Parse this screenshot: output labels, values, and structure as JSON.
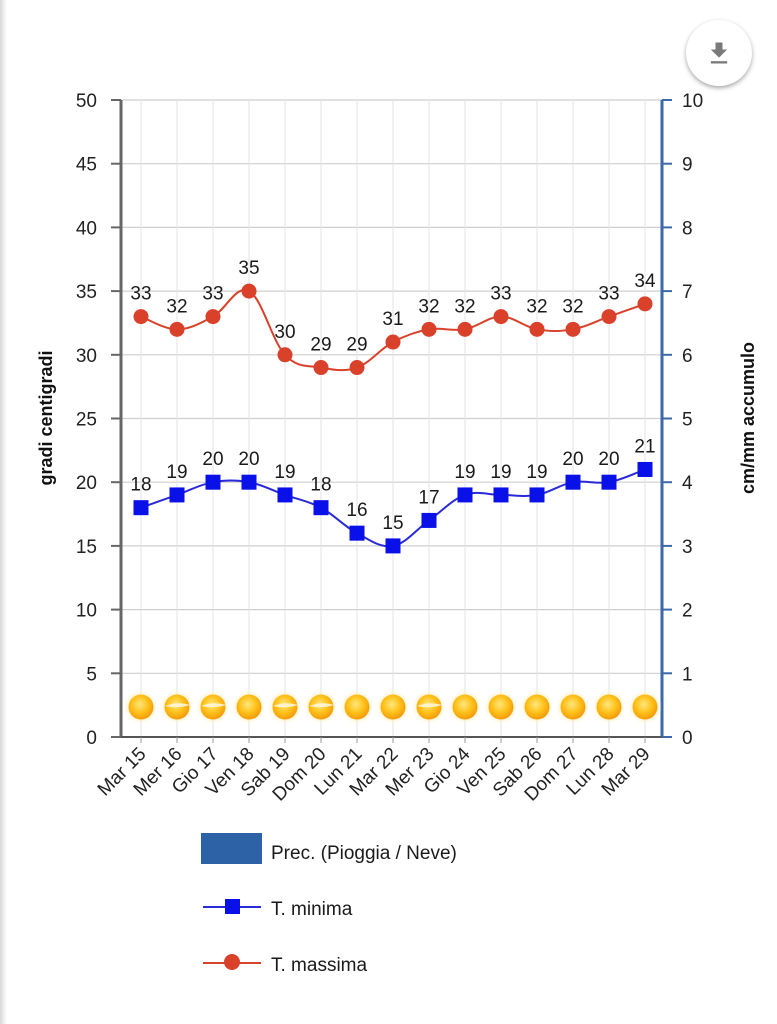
{
  "download_button": {
    "icon": "download-icon",
    "label": "Download"
  },
  "colors": {
    "t_max": "#d9412b",
    "t_min": "#0a10e8",
    "t_min_line": "#2a2ad8",
    "precip": "#2d62a6",
    "left_axis": "#666666",
    "right_axis": "#3a6aa8",
    "grid": "#dddddd"
  },
  "chart_data": {
    "type": "line",
    "title": "",
    "xlabel": "",
    "ylabel": "gradi centigradi",
    "y2label": "cm/mm accumulo",
    "ylim": [
      0,
      50
    ],
    "y2lim": [
      0,
      10
    ],
    "yticks": [
      0,
      5,
      10,
      15,
      20,
      25,
      30,
      35,
      40,
      45,
      50
    ],
    "y2ticks": [
      0,
      1,
      2,
      3,
      4,
      5,
      6,
      7,
      8,
      9,
      10
    ],
    "grid": true,
    "legend_position": "bottom",
    "categories": [
      "Mar 15",
      "Mer 16",
      "Gio 17",
      "Ven 18",
      "Sab 19",
      "Dom 20",
      "Lun 21",
      "Mar 22",
      "Mer 23",
      "Gio 24",
      "Ven 25",
      "Sab 26",
      "Dom 27",
      "Lun 28",
      "Mar 29"
    ],
    "series": [
      {
        "name": "Prec. (Pioggia / Neve)",
        "type": "bar",
        "axis": "right",
        "values": [
          0,
          0,
          0,
          0,
          0,
          0,
          0,
          0,
          0,
          0,
          0,
          0,
          0,
          0,
          0
        ]
      },
      {
        "name": "T. minima",
        "type": "line",
        "marker": "square",
        "axis": "left",
        "values": [
          18,
          19,
          20,
          20,
          19,
          18,
          16,
          15,
          17,
          19,
          19,
          19,
          20,
          20,
          21
        ]
      },
      {
        "name": "T. massima",
        "type": "line",
        "marker": "circle",
        "axis": "left",
        "values": [
          33,
          32,
          33,
          35,
          30,
          29,
          29,
          31,
          32,
          32,
          33,
          32,
          32,
          33,
          34
        ]
      }
    ],
    "weather_icons": [
      "sunny",
      "mostly-sunny",
      "mostly-sunny",
      "sunny",
      "mostly-sunny",
      "mostly-sunny",
      "sunny",
      "sunny",
      "mostly-sunny",
      "sunny",
      "sunny",
      "sunny",
      "sunny",
      "sunny",
      "sunny"
    ]
  }
}
